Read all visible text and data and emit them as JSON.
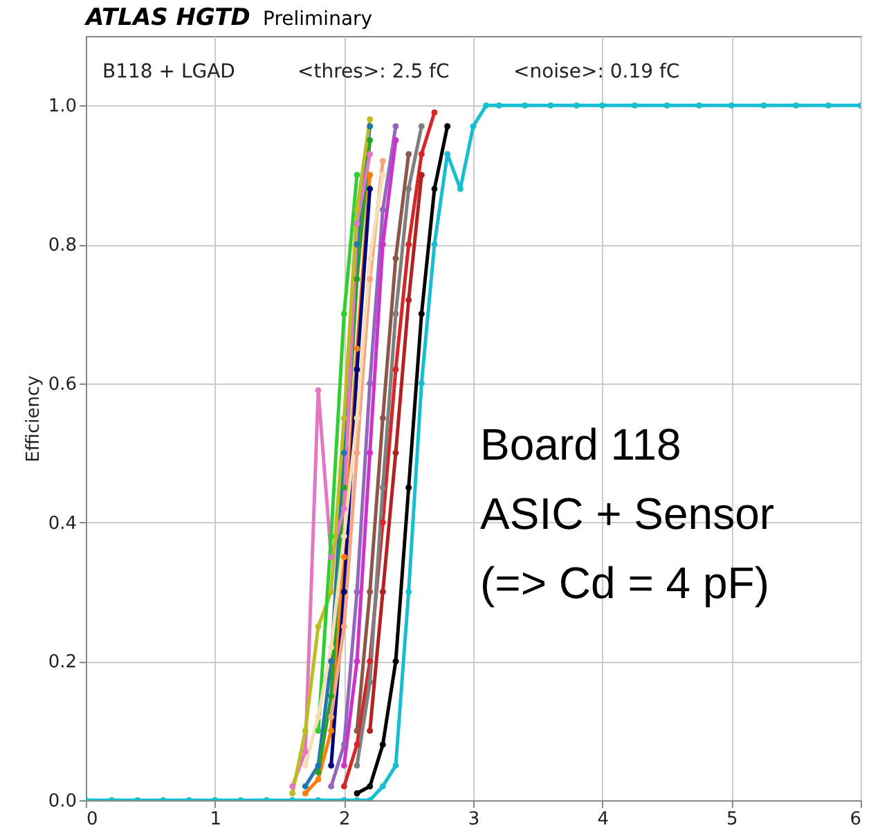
{
  "chart_data": {
    "type": "line",
    "title": "ATLAS HGTD",
    "subtitle": "Preliminary",
    "ylabel": "Efficiency",
    "annotations": [
      "B118 + LGAD",
      "<thres>: 2.5 fC",
      "<noise>: 0.19 fC",
      "Board 118",
      "ASIC + Sensor",
      "(=> Cd = 4 pF)"
    ],
    "series": [
      {
        "color": "#1f77b4",
        "x": [
          1.7,
          1.8,
          1.9,
          2.0,
          2.1,
          2.2
        ],
        "values": [
          0.02,
          0.05,
          0.2,
          0.5,
          0.8,
          0.97
        ]
      },
      {
        "color": "#ff7f0e",
        "x": [
          1.7,
          1.8,
          1.9,
          2.0,
          2.1,
          2.2
        ],
        "values": [
          0.01,
          0.03,
          0.1,
          0.35,
          0.65,
          0.9
        ]
      },
      {
        "color": "#2ca02c",
        "x": [
          1.8,
          1.9,
          2.0,
          2.1,
          2.2
        ],
        "values": [
          0.04,
          0.15,
          0.45,
          0.75,
          0.95
        ]
      },
      {
        "color": "#d62728",
        "x": [
          2.0,
          2.1,
          2.2,
          2.3,
          2.4,
          2.5,
          2.6,
          2.7
        ],
        "values": [
          0.02,
          0.08,
          0.2,
          0.4,
          0.62,
          0.8,
          0.93,
          0.99
        ]
      },
      {
        "color": "#9467bd",
        "x": [
          1.9,
          2.0,
          2.1,
          2.2,
          2.3,
          2.4
        ],
        "values": [
          0.02,
          0.08,
          0.3,
          0.6,
          0.85,
          0.97
        ]
      },
      {
        "color": "#8c564b",
        "x": [
          2.1,
          2.2,
          2.3,
          2.4,
          2.5
        ],
        "values": [
          0.1,
          0.3,
          0.55,
          0.78,
          0.93
        ]
      },
      {
        "color": "#e377c2",
        "x": [
          1.6,
          1.7,
          1.8,
          1.9,
          2.0,
          2.1,
          2.2
        ],
        "values": [
          0.02,
          0.07,
          0.59,
          0.35,
          0.42,
          0.83,
          0.93
        ]
      },
      {
        "color": "#7f7f7f",
        "x": [
          2.1,
          2.2,
          2.3,
          2.4,
          2.5,
          2.6
        ],
        "values": [
          0.05,
          0.17,
          0.45,
          0.7,
          0.88,
          0.97
        ]
      },
      {
        "color": "#bcbd22",
        "x": [
          1.6,
          1.7,
          1.8,
          1.9,
          2.0,
          2.1,
          2.2
        ],
        "values": [
          0.01,
          0.1,
          0.25,
          0.3,
          0.55,
          0.85,
          0.98
        ]
      },
      {
        "color": "#000000",
        "x": [
          2.1,
          2.2,
          2.3,
          2.4,
          2.5,
          2.6,
          2.7,
          2.8
        ],
        "values": [
          0.01,
          0.02,
          0.08,
          0.2,
          0.45,
          0.7,
          0.88,
          0.97
        ]
      },
      {
        "color": "#000080",
        "x": [
          1.9,
          2.0,
          2.1,
          2.2
        ],
        "values": [
          0.05,
          0.3,
          0.62,
          0.88
        ]
      },
      {
        "color": "#f4a582",
        "x": [
          1.9,
          2.0,
          2.1,
          2.2,
          2.3
        ],
        "values": [
          0.12,
          0.25,
          0.5,
          0.75,
          0.92
        ]
      },
      {
        "color": "#32cd32",
        "x": [
          1.8,
          1.9,
          2.0,
          2.1
        ],
        "values": [
          0.1,
          0.38,
          0.7,
          0.9
        ]
      },
      {
        "color": "#cc33cc",
        "x": [
          2.0,
          2.1,
          2.2,
          2.3,
          2.4
        ],
        "values": [
          0.05,
          0.2,
          0.5,
          0.8,
          0.95
        ]
      },
      {
        "color": "#f5deb3",
        "x": [
          1.7,
          1.8,
          1.9,
          2.0,
          2.1,
          2.2,
          2.3
        ],
        "values": [
          0.05,
          0.12,
          0.22,
          0.38,
          0.55,
          0.78,
          0.9
        ]
      },
      {
        "color": "#b22222",
        "x": [
          2.2,
          2.3,
          2.4,
          2.5,
          2.6
        ],
        "values": [
          0.1,
          0.3,
          0.5,
          0.72,
          0.9
        ]
      },
      {
        "color": "#17becf",
        "x": [
          0,
          0.2,
          0.4,
          0.6,
          0.8,
          1.0,
          1.2,
          1.4,
          1.6,
          1.8,
          2.0,
          2.1,
          2.2,
          2.3,
          2.4,
          2.5,
          2.6,
          2.7,
          2.8,
          2.9,
          3.0,
          3.1,
          3.2,
          3.4,
          3.6,
          3.8,
          4.0,
          4.25,
          4.5,
          4.75,
          5.0,
          5.25,
          5.5,
          5.75,
          6.0
        ],
        "values": [
          0,
          0,
          0,
          0,
          0,
          0,
          0,
          0,
          0,
          0,
          0,
          0,
          0,
          0.02,
          0.05,
          0.3,
          0.6,
          0.8,
          0.93,
          0.88,
          0.97,
          1,
          1,
          1,
          1,
          1,
          1,
          1,
          1,
          1,
          1,
          1,
          1,
          1,
          1
        ]
      }
    ],
    "xlim": [
      0,
      6
    ],
    "xticks": [
      0,
      1,
      2,
      3,
      4,
      5,
      6
    ],
    "ylim": [
      0,
      1.1
    ],
    "yticks": [
      {
        "value": 0,
        "label": "0.0"
      },
      {
        "value": 0.2,
        "label": "0.2"
      },
      {
        "value": 0.4,
        "label": "0.4"
      },
      {
        "value": 0.6,
        "label": "0.6"
      },
      {
        "value": 0.8,
        "label": "0.8"
      },
      {
        "value": 1,
        "label": "1.0"
      }
    ],
    "grid": true,
    "marker": "circle",
    "line_style": "solid"
  }
}
